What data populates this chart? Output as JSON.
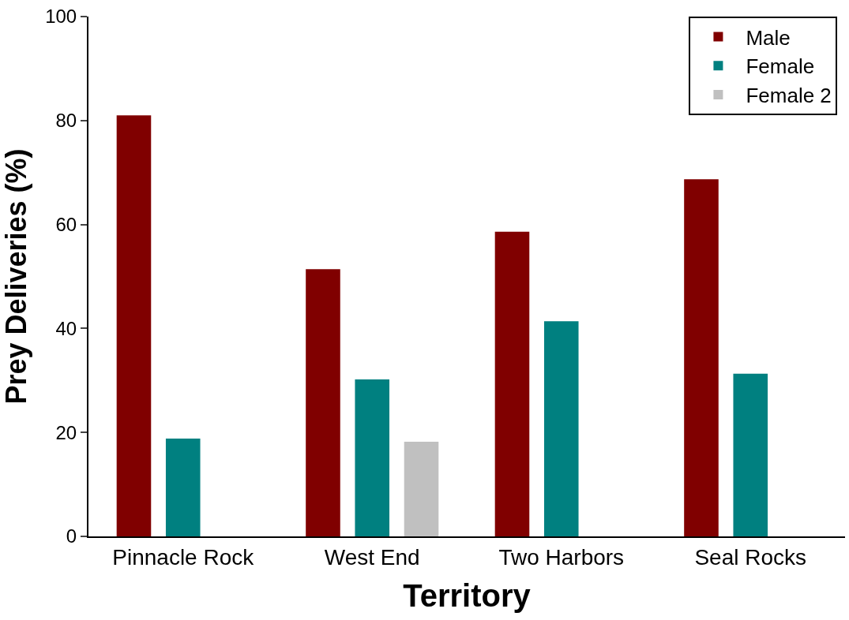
{
  "chart_data": {
    "type": "bar",
    "xlabel": "Territory",
    "ylabel": "Prey Deliveries (%)",
    "categories": [
      "Pinnacle Rock",
      "West End",
      "Two Harbors",
      "Seal Rocks"
    ],
    "series": [
      {
        "name": "Male",
        "color": "#800000",
        "values": [
          81.0,
          51.4,
          58.6,
          68.7
        ]
      },
      {
        "name": "Female",
        "color": "#008080",
        "values": [
          18.8,
          30.2,
          41.4,
          31.3
        ]
      },
      {
        "name": "Female 2",
        "color": "#c0c0c0",
        "values": [
          null,
          18.2,
          null,
          null
        ]
      }
    ],
    "ylim": [
      0,
      100
    ],
    "yticks": [
      0,
      20,
      40,
      60,
      80,
      100
    ],
    "grid": false,
    "legend": "top right"
  }
}
